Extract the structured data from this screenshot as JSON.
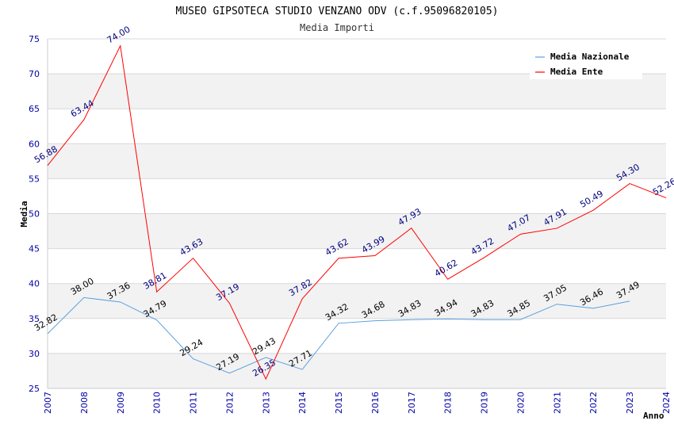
{
  "chart_data": {
    "type": "line",
    "title": "MUSEO GIPSOTECA STUDIO VENZANO ODV (c.f.95096820105)",
    "subtitle": "Media Importi",
    "xlabel": "Anno",
    "ylabel": "Media",
    "ylim": [
      25,
      75
    ],
    "yticks": [
      25,
      30,
      35,
      40,
      45,
      50,
      55,
      60,
      65,
      70,
      75
    ],
    "x": [
      "2007",
      "2008",
      "2009",
      "2010",
      "2011",
      "2012",
      "2013",
      "2014",
      "2015",
      "2016",
      "2017",
      "2018",
      "2019",
      "2020",
      "2021",
      "2022",
      "2023",
      "2024"
    ],
    "grid": "horizontal bands",
    "legend_position": "top-right",
    "series": [
      {
        "name": "Media Nazionale",
        "color": "#5aa0e0",
        "label_color": "#000000",
        "values": [
          32.82,
          38.0,
          37.36,
          34.79,
          29.24,
          27.19,
          29.43,
          27.71,
          34.32,
          34.68,
          34.83,
          34.94,
          34.83,
          34.85,
          37.05,
          36.46,
          37.49,
          null
        ],
        "labels": [
          "32.82",
          "38.00",
          "37.36",
          "34.79",
          "29.24",
          "27.19",
          "29.43",
          "27.71",
          "34.32",
          "34.68",
          "34.83",
          "34.94",
          "34.83",
          "34.85",
          "37.05",
          "36.46",
          "37.49",
          ""
        ]
      },
      {
        "name": "Media Ente",
        "color": "#ff0000",
        "label_color": "#000080",
        "values": [
          56.88,
          63.44,
          74.0,
          38.81,
          43.63,
          37.19,
          26.35,
          37.82,
          43.62,
          43.99,
          47.93,
          40.62,
          43.72,
          47.07,
          47.91,
          50.49,
          54.3,
          52.26
        ],
        "labels": [
          "56.88",
          "63.44",
          "74.00",
          "38.81",
          "43.63",
          "37.19",
          "26.35",
          "37.82",
          "43.62",
          "43.99",
          "47.93",
          "40.62",
          "43.72",
          "47.07",
          "47.91",
          "50.49",
          "54.30",
          "52.26"
        ]
      }
    ]
  }
}
